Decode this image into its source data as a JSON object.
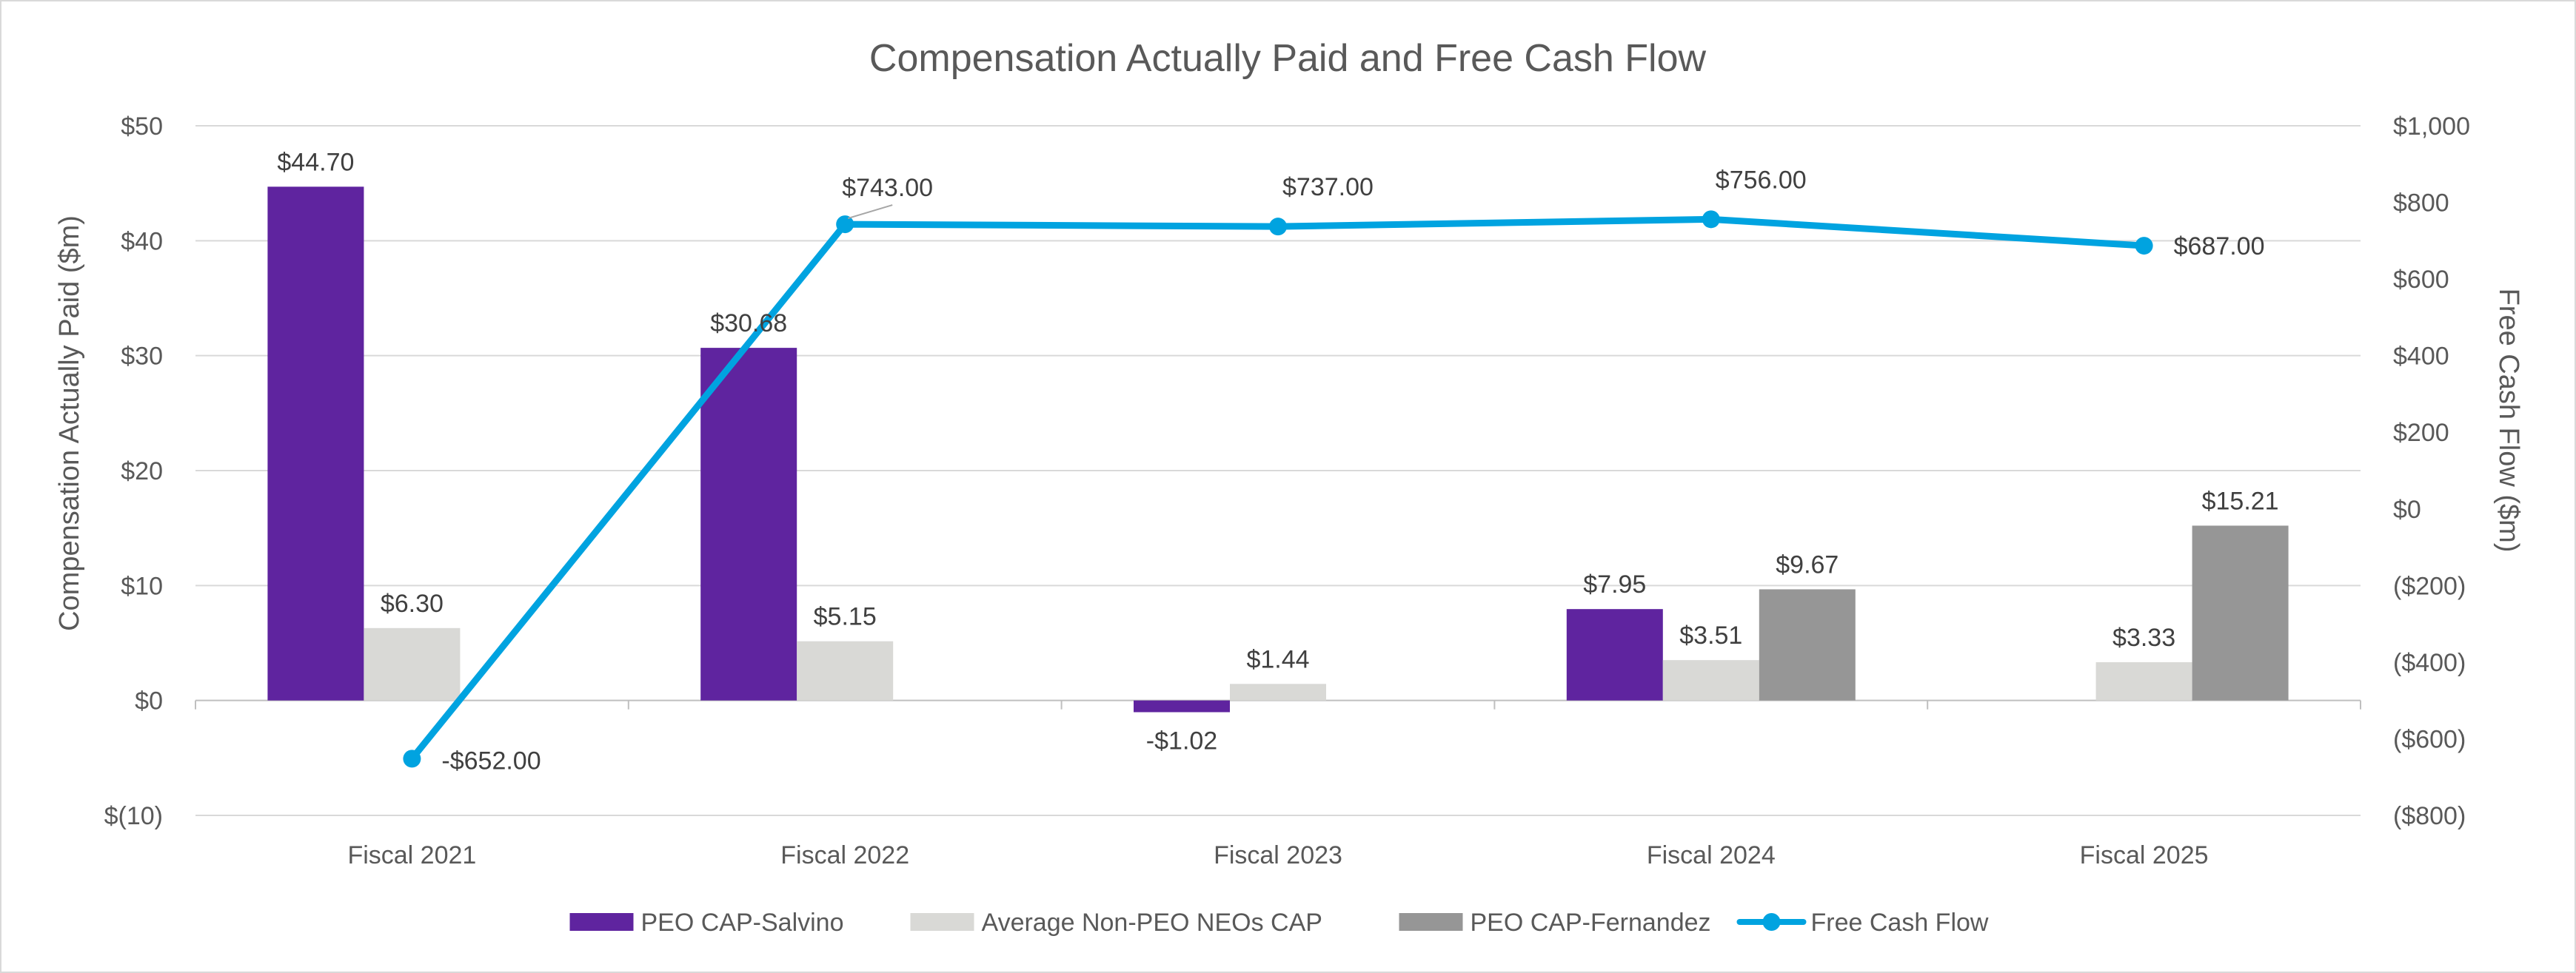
{
  "chart_data": {
    "type": "bar",
    "title": "Compensation Actually Paid and Free Cash Flow",
    "categories": [
      "Fiscal 2021",
      "Fiscal 2022",
      "Fiscal 2023",
      "Fiscal 2024",
      "Fiscal 2025"
    ],
    "left_axis": {
      "label": "Compensation Actually Paid ($m)",
      "range": [
        -10,
        50
      ],
      "ticks": [
        -10,
        0,
        10,
        20,
        30,
        40,
        50
      ],
      "tick_labels": [
        "$(10)",
        "$0",
        "$10",
        "$20",
        "$30",
        "$40",
        "$50"
      ]
    },
    "right_axis": {
      "label": "Free Cash Flow ($m)",
      "range": [
        -800,
        1000
      ],
      "ticks": [
        -800,
        -600,
        -400,
        -200,
        0,
        200,
        400,
        600,
        800,
        1000
      ],
      "tick_labels": [
        "($800)",
        "($600)",
        "($400)",
        "($200)",
        "$0",
        "$200",
        "$400",
        "$600",
        "$800",
        "$1,000"
      ]
    },
    "series": [
      {
        "name": "PEO CAP-Salvino",
        "kind": "bar",
        "color": "#5f249f",
        "values": [
          44.7,
          30.68,
          -1.02,
          7.95,
          null
        ],
        "labels": [
          "$44.70",
          "$30.68",
          "-$1.02",
          "$7.95",
          ""
        ]
      },
      {
        "name": "Average Non-PEO NEOs CAP",
        "kind": "bar",
        "color": "#d9d9d6",
        "values": [
          6.3,
          5.15,
          1.44,
          3.51,
          3.33
        ],
        "labels": [
          "$6.30",
          "$5.15",
          "$1.44",
          "$3.51",
          "$3.33"
        ]
      },
      {
        "name": "PEO CAP-Fernandez",
        "kind": "bar",
        "color": "#969696",
        "values": [
          null,
          null,
          null,
          9.67,
          15.21
        ],
        "labels": [
          "",
          "",
          "",
          "$9.67",
          "$15.21"
        ]
      },
      {
        "name": "Free Cash Flow",
        "kind": "line",
        "axis": "right",
        "color": "#00a3e0",
        "values": [
          -652,
          743,
          737,
          756,
          687
        ],
        "labels": [
          "-$652.00",
          "$743.00",
          "$737.00",
          "$756.00",
          "$687.00"
        ]
      }
    ],
    "legend": {
      "position": "bottom",
      "items": [
        "PEO CAP-Salvino",
        "Average Non-PEO NEOs CAP",
        "PEO CAP-Fernandez",
        "Free Cash Flow"
      ]
    },
    "grid": true
  }
}
